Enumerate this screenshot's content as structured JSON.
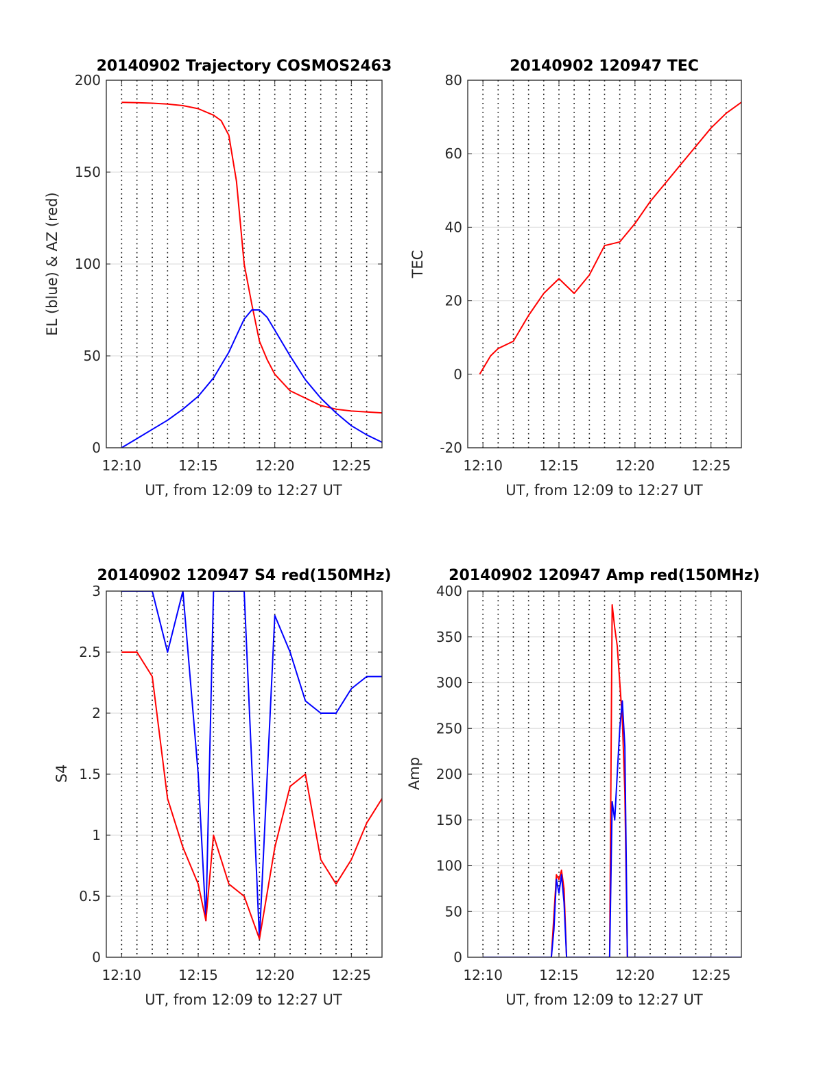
{
  "chart_data": [
    {
      "type": "line",
      "title": "20140902 Trajectory COSMOS2463",
      "xlabel": "UT, from 12:09 to 12:27 UT",
      "ylabel": "EL (blue) & AZ (red)",
      "xlim": [
        "12:09",
        "12:27"
      ],
      "ylim": [
        0,
        200
      ],
      "x_ticks": [
        "12:10",
        "12:15",
        "12:20",
        "12:25"
      ],
      "y_ticks": [
        "0",
        "50",
        "100",
        "150",
        "200"
      ],
      "grid": "y solid, x dotted every 1 min",
      "series": [
        {
          "color": "#ff0000",
          "x": [
            "12:10",
            "12:11",
            "12:12",
            "12:13",
            "12:14",
            "12:15",
            "12:16",
            "12:16:30",
            "12:17",
            "12:17:30",
            "12:18",
            "12:18:30",
            "12:19",
            "12:19:30",
            "12:20",
            "12:21",
            "12:22",
            "12:23",
            "12:24",
            "12:25",
            "12:26",
            "12:27"
          ],
          "values": [
            188,
            187.8,
            187.5,
            187,
            186.2,
            184.5,
            181,
            178,
            170,
            145,
            100,
            78,
            58,
            48,
            40,
            31,
            27,
            23,
            21,
            20,
            19.5,
            19
          ]
        },
        {
          "color": "#0000ff",
          "x": [
            "12:10",
            "12:11",
            "12:12",
            "12:13",
            "12:14",
            "12:15",
            "12:16",
            "12:17",
            "12:17:30",
            "12:18",
            "12:18:30",
            "12:19",
            "12:19:30",
            "12:20",
            "12:21",
            "12:22",
            "12:23",
            "12:24",
            "12:25",
            "12:26",
            "12:27"
          ],
          "values": [
            0,
            5,
            10,
            15,
            21,
            28,
            38,
            52,
            61,
            70,
            75,
            75,
            71,
            64,
            50,
            37,
            27,
            19,
            12,
            7,
            3
          ]
        }
      ]
    },
    {
      "type": "line",
      "title": "20140902 120947 TEC",
      "xlabel": "UT, from 12:09 to 12:27 UT",
      "ylabel": "TEC",
      "xlim": [
        "12:09",
        "12:27"
      ],
      "ylim": [
        -20,
        80
      ],
      "x_ticks": [
        "12:10",
        "12:15",
        "12:20",
        "12:25"
      ],
      "y_ticks": [
        "-20",
        "0",
        "20",
        "40",
        "60",
        "80"
      ],
      "grid": "y solid, x dotted every 1 min",
      "series": [
        {
          "color": "#ff0000",
          "x": [
            "12:09:47",
            "12:10:30",
            "12:11",
            "12:12",
            "12:13",
            "12:14",
            "12:15",
            "12:16",
            "12:17",
            "12:18",
            "12:19",
            "12:20",
            "12:21",
            "12:22",
            "12:23",
            "12:24",
            "12:25",
            "12:26",
            "12:27"
          ],
          "values": [
            0,
            5,
            7,
            9,
            16,
            22,
            26,
            22,
            27,
            35,
            36,
            41,
            47,
            52,
            57,
            62,
            67,
            71,
            74
          ]
        }
      ]
    },
    {
      "type": "line",
      "title": "20140902 120947 S4 red(150MHz)",
      "xlabel": "UT, from 12:09 to 12:27 UT",
      "ylabel": "S4",
      "xlim": [
        "12:09",
        "12:27"
      ],
      "ylim": [
        0,
        3
      ],
      "x_ticks": [
        "12:10",
        "12:15",
        "12:20",
        "12:25"
      ],
      "y_ticks": [
        "0",
        "0.5",
        "1",
        "1.5",
        "2",
        "2.5",
        "3"
      ],
      "grid": "y solid, x dotted every 1 min",
      "series": [
        {
          "color": "#0000ff",
          "x": [
            "12:10",
            "12:11",
            "12:12",
            "12:13",
            "12:14",
            "12:15",
            "12:15:30",
            "12:16",
            "12:17",
            "12:18",
            "12:19",
            "12:20",
            "12:21",
            "12:22",
            "12:23",
            "12:24",
            "12:25",
            "12:26",
            "12:27"
          ],
          "values": [
            3,
            3,
            3,
            2.5,
            3,
            1.5,
            0.3,
            3,
            3,
            3,
            0.15,
            2.8,
            2.5,
            2.1,
            2.0,
            2.0,
            2.2,
            2.3,
            2.3
          ]
        },
        {
          "color": "#ff0000",
          "x": [
            "12:10",
            "12:11",
            "12:12",
            "12:13",
            "12:14",
            "12:15",
            "12:15:30",
            "12:16",
            "12:17",
            "12:18",
            "12:19",
            "12:20",
            "12:21",
            "12:22",
            "12:23",
            "12:24",
            "12:25",
            "12:26",
            "12:27"
          ],
          "values": [
            2.5,
            2.5,
            2.3,
            1.3,
            0.9,
            0.6,
            0.3,
            1.0,
            0.6,
            0.5,
            0.15,
            0.9,
            1.4,
            1.5,
            0.8,
            0.6,
            0.8,
            1.1,
            1.3
          ]
        }
      ]
    },
    {
      "type": "line",
      "title": "20140902 120947 Amp red(150MHz)",
      "xlabel": "UT, from 12:09 to 12:27 UT",
      "ylabel": "Amp",
      "xlim": [
        "12:09",
        "12:27"
      ],
      "ylim": [
        0,
        400
      ],
      "x_ticks": [
        "12:10",
        "12:15",
        "12:20",
        "12:25"
      ],
      "y_ticks": [
        "0",
        "50",
        "100",
        "150",
        "200",
        "250",
        "300",
        "350",
        "400"
      ],
      "grid": "y solid, x dotted every 1 min",
      "series": [
        {
          "color": "#ff0000",
          "x": [
            "12:10",
            "12:14:30",
            "12:14:40",
            "12:14:50",
            "12:15",
            "12:15:10",
            "12:15:20",
            "12:15:30",
            "12:18:20",
            "12:18:30",
            "12:18:40",
            "12:18:50",
            "12:19",
            "12:19:10",
            "12:19:20",
            "12:19:30",
            "12:20",
            "12:27"
          ],
          "values": [
            0,
            0,
            45,
            90,
            85,
            95,
            75,
            0,
            0,
            385,
            360,
            340,
            300,
            260,
            180,
            0,
            0,
            0
          ]
        },
        {
          "color": "#0000ff",
          "x": [
            "12:10",
            "12:14:30",
            "12:14:40",
            "12:14:50",
            "12:15",
            "12:15:10",
            "12:15:20",
            "12:15:30",
            "12:18:20",
            "12:18:30",
            "12:18:40",
            "12:18:50",
            "12:19",
            "12:19:10",
            "12:19:20",
            "12:19:30",
            "12:20",
            "12:27"
          ],
          "values": [
            0,
            0,
            30,
            85,
            70,
            90,
            60,
            0,
            0,
            170,
            150,
            200,
            250,
            280,
            230,
            0,
            0,
            0
          ]
        }
      ]
    }
  ]
}
